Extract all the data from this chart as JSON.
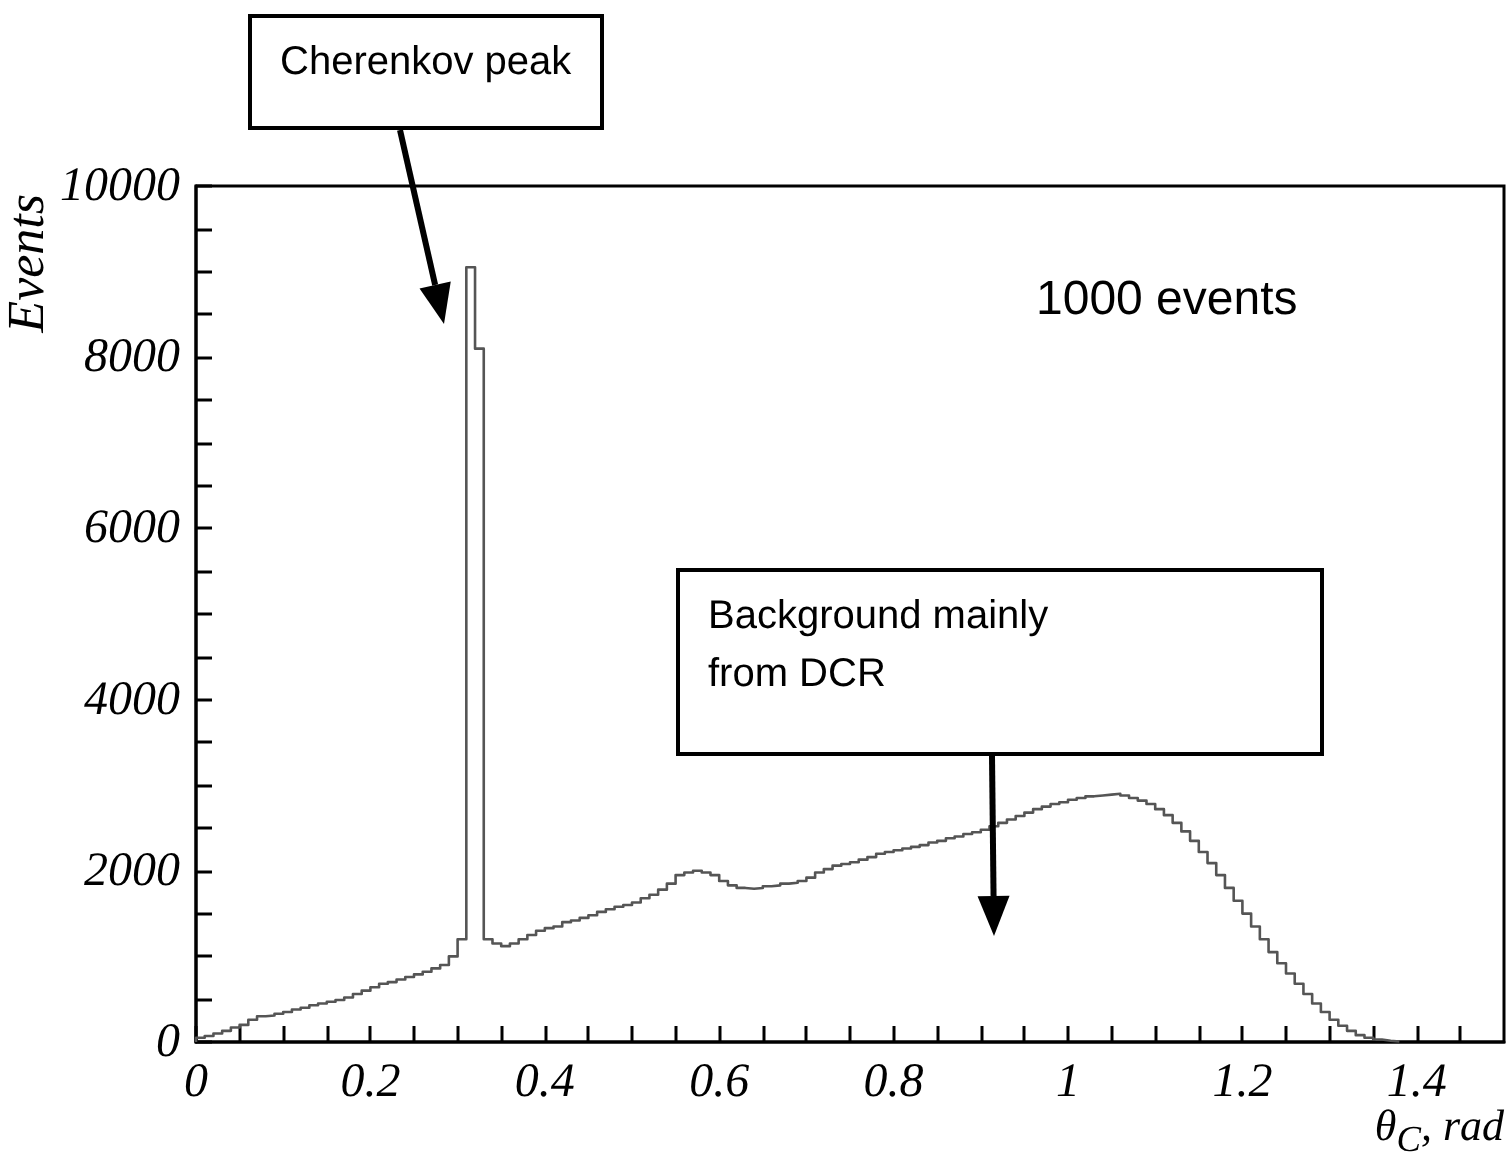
{
  "chart_data": {
    "type": "histogram",
    "xlabel": "θ$_{C}$, rad",
    "ylabel": "Events",
    "color": "#555555",
    "bins": [
      0,
      0.01,
      0.02,
      0.03,
      0.04,
      0.05,
      0.06,
      0.07,
      0.08,
      0.09,
      0.1,
      0.11,
      0.12,
      0.13,
      0.14,
      0.15,
      0.16,
      0.17,
      0.18,
      0.19,
      0.2,
      0.21,
      0.22,
      0.23,
      0.24,
      0.25,
      0.26,
      0.27,
      0.28,
      0.29,
      0.3,
      0.31,
      0.32,
      0.33,
      0.34,
      0.35,
      0.36,
      0.37,
      0.38,
      0.39,
      0.4,
      0.41,
      0.42,
      0.43,
      0.44,
      0.45,
      0.46,
      0.47,
      0.48,
      0.49,
      0.5,
      0.51,
      0.52,
      0.53,
      0.54,
      0.55,
      0.56,
      0.57,
      0.58,
      0.59,
      0.6,
      0.61,
      0.62,
      0.63,
      0.64,
      0.65,
      0.66,
      0.67,
      0.68,
      0.69,
      0.7,
      0.71,
      0.72,
      0.73,
      0.74,
      0.75,
      0.76,
      0.77,
      0.78,
      0.79,
      0.8,
      0.81,
      0.82,
      0.83,
      0.84,
      0.85,
      0.86,
      0.87,
      0.88,
      0.89,
      0.9,
      0.91,
      0.92,
      0.93,
      0.94,
      0.95,
      0.96,
      0.97,
      0.98,
      0.99,
      1,
      1.01,
      1.02,
      1.03,
      1.04,
      1.05,
      1.06,
      1.07,
      1.08,
      1.09,
      1.1,
      1.11,
      1.12,
      1.13,
      1.14,
      1.15,
      1.16,
      1.17,
      1.18,
      1.19,
      1.2,
      1.21,
      1.22,
      1.23,
      1.24,
      1.25,
      1.26,
      1.27,
      1.28,
      1.29,
      1.3,
      1.31,
      1.32,
      1.33,
      1.34,
      1.35,
      1.36,
      1.37,
      1.38
    ],
    "values": [
      50,
      70,
      100,
      130,
      170,
      200,
      260,
      300,
      310,
      330,
      350,
      380,
      400,
      430,
      450,
      470,
      490,
      520,
      560,
      600,
      640,
      680,
      700,
      730,
      760,
      790,
      820,
      860,
      900,
      1000,
      1200,
      9050,
      8100,
      1200,
      1150,
      1120,
      1150,
      1200,
      1250,
      1300,
      1330,
      1350,
      1400,
      1420,
      1450,
      1480,
      1520,
      1550,
      1580,
      1600,
      1630,
      1680,
      1720,
      1780,
      1850,
      1950,
      1980,
      2000,
      1980,
      1950,
      1880,
      1830,
      1800,
      1790,
      1800,
      1820,
      1830,
      1850,
      1860,
      1880,
      1920,
      1980,
      2020,
      2060,
      2080,
      2100,
      2130,
      2160,
      2200,
      2220,
      2240,
      2260,
      2280,
      2300,
      2330,
      2350,
      2380,
      2400,
      2430,
      2450,
      2480,
      2520,
      2560,
      2600,
      2640,
      2680,
      2720,
      2750,
      2780,
      2800,
      2830,
      2850,
      2870,
      2880,
      2890,
      2900,
      2880,
      2850,
      2820,
      2780,
      2720,
      2650,
      2560,
      2460,
      2350,
      2220,
      2090,
      1950,
      1800,
      1650,
      1500,
      1350,
      1200,
      1050,
      920,
      800,
      680,
      560,
      450,
      350,
      260,
      190,
      130,
      80,
      50,
      30,
      15,
      5
    ],
    "xlim": [
      0,
      1.5
    ],
    "xticks": [
      0,
      {
        "value": 0.05,
        "label": null
      },
      {
        "value": 0.1,
        "label": null
      },
      {
        "value": 0.15,
        "label": null
      },
      0.2,
      {
        "value": 0.25,
        "label": null
      },
      {
        "value": 0.3,
        "label": null
      },
      {
        "value": 0.35,
        "label": null
      },
      0.4,
      {
        "value": 0.45,
        "label": null
      },
      {
        "value": 0.5,
        "label": null
      },
      {
        "value": 0.55,
        "label": null
      },
      0.6,
      {
        "value": 0.65,
        "label": null
      },
      {
        "value": 0.7,
        "label": null
      },
      {
        "value": 0.75,
        "label": null
      },
      0.8,
      {
        "value": 0.85,
        "label": null
      },
      {
        "value": 0.9,
        "label": null
      },
      {
        "value": 0.95,
        "label": null
      },
      1,
      {
        "value": 1.05,
        "label": null
      },
      {
        "value": 1.1,
        "label": null
      },
      {
        "value": 1.15,
        "label": null
      },
      1.2,
      {
        "value": 1.25,
        "label": null
      },
      {
        "value": 1.3,
        "label": null
      },
      {
        "value": 1.35,
        "label": null
      },
      1.4,
      {
        "value": 1.45,
        "label": null
      }
    ],
    "ylim": [
      0,
      10000
    ],
    "yticks": [
      0,
      {
        "value": 500,
        "label": null
      },
      {
        "value": 1000,
        "label": null
      },
      {
        "value": 1500,
        "label": null
      },
      2000,
      {
        "value": 2500,
        "label": null
      },
      {
        "value": 3000,
        "label": null
      },
      {
        "value": 3500,
        "label": null
      },
      4000,
      {
        "value": 4500,
        "label": null
      },
      {
        "value": 5000,
        "label": null
      },
      {
        "value": 5500,
        "label": null
      },
      6000,
      {
        "value": 6500,
        "label": null
      },
      {
        "value": 7000,
        "label": null
      },
      {
        "value": 7500,
        "label": null
      },
      8000,
      {
        "value": 8500,
        "label": null
      },
      {
        "value": 9000,
        "label": null
      },
      {
        "value": 9500,
        "label": null
      },
      10000
    ],
    "annotations": [
      "Cherenkov peak",
      "1000 events",
      "Background mainly from DCR"
    ]
  }
}
